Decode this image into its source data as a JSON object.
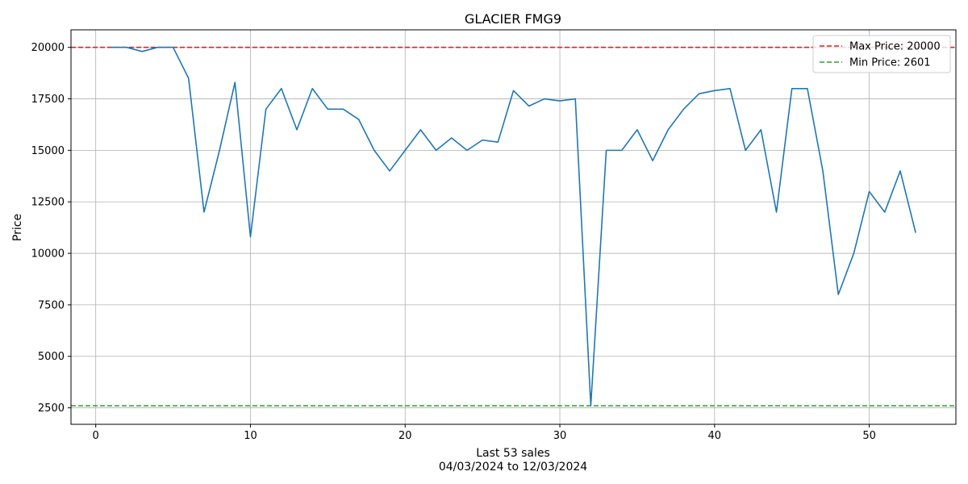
{
  "chart_data": {
    "type": "line",
    "title": "GLACIER FMG9",
    "xlabel_line1": "Last 53 sales",
    "xlabel_line2": "04/03/2024 to 12/03/2024",
    "ylabel": "Price",
    "xlim": [
      -1.6,
      55.6
    ],
    "ylim": [
      1700,
      20850
    ],
    "xticks": [
      0,
      10,
      20,
      30,
      40,
      50
    ],
    "yticks": [
      2500,
      5000,
      7500,
      10000,
      12500,
      15000,
      17500,
      20000
    ],
    "grid": true,
    "legend_position": "top-right",
    "colors": {
      "line": "#1f77b4",
      "max": "#d62728",
      "min": "#2ca02c"
    },
    "series": [
      {
        "x": [
          1,
          2,
          3,
          4,
          5,
          6,
          7,
          8,
          9,
          10,
          11,
          12,
          13,
          14,
          15,
          16,
          17,
          18,
          19,
          20,
          21,
          22,
          23,
          24,
          25,
          26,
          27,
          28,
          29,
          30,
          31,
          32,
          33,
          34,
          35,
          36,
          37,
          38,
          39,
          40,
          41,
          42,
          43,
          44,
          45,
          46,
          47,
          48,
          49,
          50,
          51,
          52,
          53
        ],
        "values": [
          20000,
          20000,
          19800,
          20000,
          20000,
          18500,
          12000,
          15000,
          18300,
          10800,
          17000,
          18000,
          16000,
          18000,
          17000,
          17000,
          16500,
          15000,
          14000,
          15000,
          16000,
          15000,
          15600,
          15000,
          15500,
          15400,
          17900,
          17150,
          17500,
          17400,
          17500,
          2601,
          15000,
          15000,
          16000,
          14500,
          16000,
          17000,
          17750,
          17900,
          18000,
          15000,
          16000,
          12000,
          18000,
          18000,
          14000,
          8000,
          10000,
          13000,
          12000,
          14000,
          11000
        ]
      }
    ],
    "reference_lines": [
      {
        "name": "Max Price: 20000",
        "value": 20000,
        "style": "dashed",
        "color": "#d62728"
      },
      {
        "name": "Min Price: 2601",
        "value": 2601,
        "style": "dashed",
        "color": "#2ca02c"
      }
    ]
  }
}
